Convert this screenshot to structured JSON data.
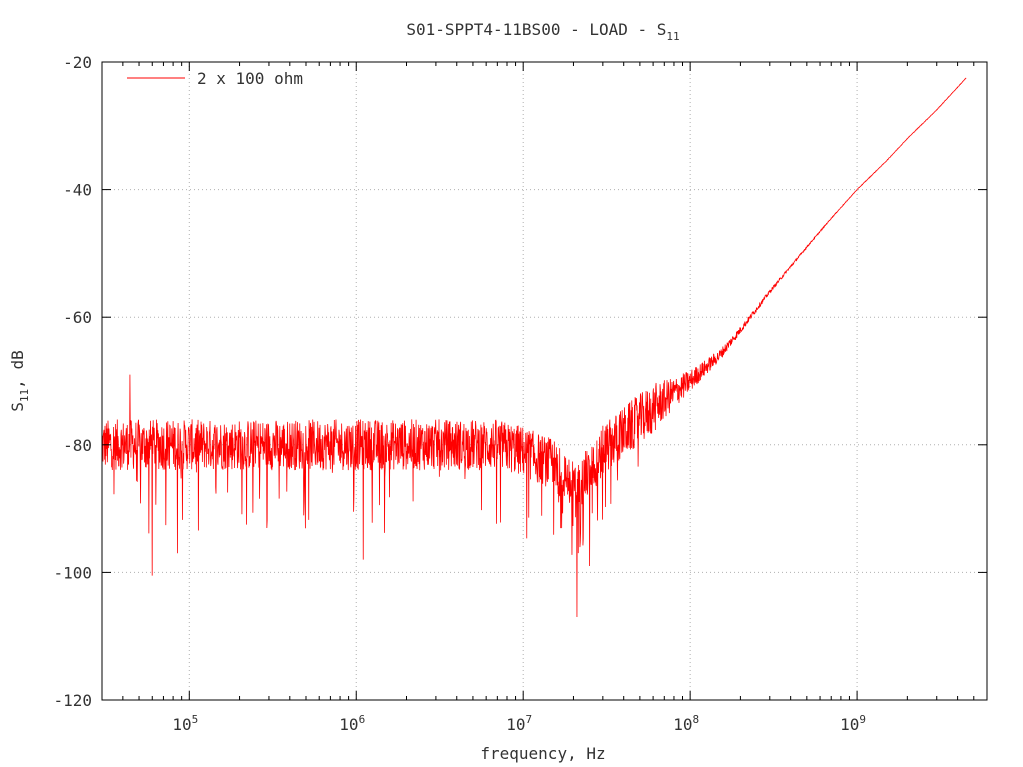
{
  "chart_data": {
    "type": "line",
    "title": "S01-SPPT4-11BS00 - LOAD - S",
    "title_subscript": "11",
    "xlabel": "frequency, Hz",
    "ylabel": "S",
    "ylabel_subscript": "11",
    "ylabel_suffix": ", dB",
    "x_scale": "log",
    "xlim": [
      30000,
      6000000000
    ],
    "ylim": [
      -120,
      -20
    ],
    "x_tick_base": "10",
    "x_tick_exponents": [
      "5",
      "6",
      "7",
      "8",
      "9"
    ],
    "y_tick_labels": [
      "-20",
      "-40",
      "-60",
      "-80",
      "-100",
      "-120"
    ],
    "grid": true,
    "legend_position": "top-left",
    "series": [
      {
        "name": "2 x 100 ohm",
        "color": "#ff0000",
        "x": [
          30000,
          35000,
          40000,
          45000,
          50000,
          60000,
          80000,
          100000,
          150000,
          200000,
          300000,
          500000,
          700000,
          1000000,
          1500000,
          2000000,
          3000000,
          5000000,
          7000000,
          10000000,
          12000000,
          15000000,
          18000000,
          20000000,
          22000000,
          25000000,
          30000000,
          40000000,
          50000000,
          70000000,
          100000000,
          150000000,
          200000000,
          300000000,
          500000000,
          700000000,
          1000000000,
          1500000000,
          2000000000,
          3000000000,
          4500000000
        ],
        "y": [
          -80,
          -80,
          -80,
          -80,
          -80,
          -80,
          -80,
          -80,
          -80,
          -80,
          -80,
          -80,
          -80,
          -80,
          -80,
          -80,
          -80,
          -80,
          -80,
          -81,
          -82,
          -83,
          -85,
          -86,
          -86,
          -84,
          -81,
          -78,
          -76,
          -73,
          -70,
          -66,
          -62,
          -56,
          -49,
          -44.5,
          -40,
          -35.5,
          -32,
          -27.5,
          -22.5
        ]
      }
    ],
    "noise": {
      "spread_db": 4,
      "spike_min_db": -107,
      "notable_dips": [
        {
          "x": 60000,
          "y": -100.5
        },
        {
          "x": 85000,
          "y": -97
        },
        {
          "x": 1100000,
          "y": -98
        },
        {
          "x": 21000000,
          "y": -107
        },
        {
          "x": 25000000,
          "y": -99
        }
      ],
      "notable_peaks": [
        {
          "x": 44000,
          "y": -69
        }
      ]
    }
  }
}
